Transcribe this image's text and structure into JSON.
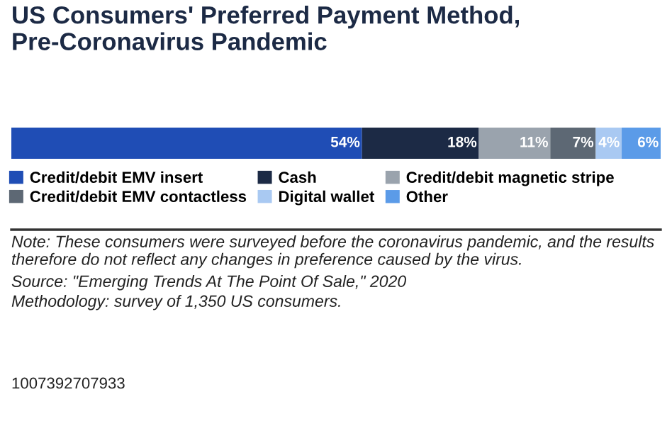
{
  "chart_data": {
    "type": "bar",
    "orientation": "horizontal",
    "stacked": true,
    "title": "US Consumers' Preferred Payment Method, Pre-Coronavirus Pandemic",
    "categories": [
      null
    ],
    "legend": "bottom",
    "series": [
      {
        "name": "Credit/debit EMV insert",
        "color": "#1f4db5",
        "values": [
          54
        ],
        "value_labels": [
          "54%"
        ]
      },
      {
        "name": "Cash",
        "color": "#1c2a45",
        "values": [
          18
        ],
        "value_labels": [
          "18%"
        ]
      },
      {
        "name": "Credit/debit magnetic stripe",
        "color": "#9aa3ad",
        "values": [
          11
        ],
        "value_labels": [
          "11%"
        ]
      },
      {
        "name": "Credit/debit EMV contactless",
        "color": "#5d6874",
        "values": [
          7
        ],
        "value_labels": [
          "7%"
        ]
      },
      {
        "name": "Digital wallet",
        "color": "#a9c9f2",
        "values": [
          4
        ],
        "value_labels": [
          "4%"
        ]
      },
      {
        "name": "Other",
        "color": "#5b9be8",
        "values": [
          6
        ],
        "value_labels": [
          "6%"
        ]
      }
    ],
    "annotations": [
      "Note: These consumers were surveyed before the coronavirus pandemic, and the results therefore do not reflect any changes in preference caused by the virus.",
      "Source: \"Emerging Trends At The Point Of Sale,\" 2020",
      "Methodology: survey of 1,350 US consumers.",
      "1007392707933"
    ]
  }
}
